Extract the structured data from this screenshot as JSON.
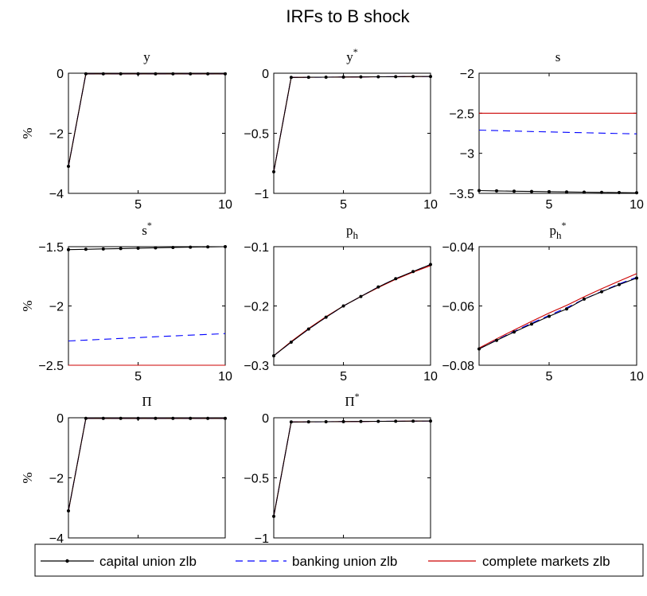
{
  "figure": {
    "title": "IRFs to B shock",
    "ylabel": "%"
  },
  "legend": {
    "items": [
      {
        "label": "capital union zlb",
        "color": "#000000",
        "style": "solid-dots"
      },
      {
        "label": "banking union zlb",
        "color": "#0000ff",
        "style": "dashed"
      },
      {
        "label": "complete markets zlb",
        "color": "#cc0000",
        "style": "solid"
      }
    ]
  },
  "chart_data": [
    {
      "type": "line",
      "title": "y",
      "ylabel": "%",
      "xlim": [
        1,
        10
      ],
      "ylim": [
        -4,
        0
      ],
      "xticks": [
        "5",
        "10"
      ],
      "yticks": [
        "0",
        "−2",
        "−4"
      ],
      "x": [
        1,
        2,
        3,
        4,
        5,
        6,
        7,
        8,
        9,
        10
      ],
      "series": [
        {
          "name": "capital union zlb",
          "values": [
            -3.1,
            -0.02,
            -0.02,
            -0.02,
            -0.02,
            -0.02,
            -0.02,
            -0.02,
            -0.02,
            -0.02
          ]
        },
        {
          "name": "banking union zlb",
          "values": [
            -3.1,
            -0.02,
            -0.02,
            -0.02,
            -0.02,
            -0.02,
            -0.02,
            -0.02,
            -0.02,
            -0.02
          ]
        },
        {
          "name": "complete markets zlb",
          "values": [
            -3.1,
            -0.02,
            -0.02,
            -0.02,
            -0.02,
            -0.02,
            -0.02,
            -0.02,
            -0.02,
            -0.02
          ]
        }
      ]
    },
    {
      "type": "line",
      "title": "y",
      "title_sup": "*",
      "ylabel": "",
      "xlim": [
        1,
        10
      ],
      "ylim": [
        -1,
        0
      ],
      "xticks": [
        "5",
        "10"
      ],
      "yticks": [
        "0",
        "−0.5",
        "−1"
      ],
      "x": [
        1,
        2,
        3,
        4,
        5,
        6,
        7,
        8,
        9,
        10
      ],
      "series": [
        {
          "name": "capital union zlb",
          "values": [
            -0.82,
            -0.035,
            -0.034,
            -0.033,
            -0.032,
            -0.031,
            -0.03,
            -0.029,
            -0.028,
            -0.027
          ]
        },
        {
          "name": "banking union zlb",
          "values": [
            -0.82,
            -0.035,
            -0.034,
            -0.033,
            -0.032,
            -0.031,
            -0.03,
            -0.029,
            -0.028,
            -0.027
          ]
        },
        {
          "name": "complete markets zlb",
          "values": [
            -0.82,
            -0.035,
            -0.034,
            -0.033,
            -0.032,
            -0.031,
            -0.03,
            -0.029,
            -0.028,
            -0.027
          ]
        }
      ]
    },
    {
      "type": "line",
      "title": "s",
      "ylabel": "",
      "xlim": [
        1,
        10
      ],
      "ylim": [
        -3.5,
        -2
      ],
      "xticks": [
        "5",
        "10"
      ],
      "yticks": [
        "−2",
        "−2.5",
        "−3",
        "−3.5"
      ],
      "x": [
        1,
        2,
        3,
        4,
        5,
        6,
        7,
        8,
        9,
        10
      ],
      "series": [
        {
          "name": "capital union zlb",
          "values": [
            -3.465,
            -3.469,
            -3.473,
            -3.476,
            -3.479,
            -3.482,
            -3.485,
            -3.488,
            -3.49,
            -3.493
          ]
        },
        {
          "name": "banking union zlb",
          "values": [
            -2.71,
            -2.716,
            -2.722,
            -2.728,
            -2.733,
            -2.738,
            -2.743,
            -2.748,
            -2.753,
            -2.757
          ]
        },
        {
          "name": "complete markets zlb",
          "values": [
            -2.5,
            -2.5,
            -2.5,
            -2.5,
            -2.5,
            -2.5,
            -2.5,
            -2.5,
            -2.5,
            -2.5
          ]
        }
      ]
    },
    {
      "type": "line",
      "title": "s",
      "title_sup": "*",
      "ylabel": "%",
      "xlim": [
        1,
        10
      ],
      "ylim": [
        -2.5,
        -1.5
      ],
      "xticks": [
        "5",
        "10"
      ],
      "yticks": [
        "−1.5",
        "−2",
        "−2.5"
      ],
      "x": [
        1,
        2,
        3,
        4,
        5,
        6,
        7,
        8,
        9,
        10
      ],
      "series": [
        {
          "name": "capital union zlb",
          "values": [
            -1.525,
            -1.522,
            -1.519,
            -1.516,
            -1.513,
            -1.51,
            -1.507,
            -1.504,
            -1.502,
            -1.5
          ]
        },
        {
          "name": "banking union zlb",
          "values": [
            -2.295,
            -2.288,
            -2.281,
            -2.274,
            -2.267,
            -2.26,
            -2.253,
            -2.246,
            -2.24,
            -2.233
          ]
        },
        {
          "name": "complete markets zlb",
          "values": [
            -2.5,
            -2.5,
            -2.5,
            -2.5,
            -2.5,
            -2.5,
            -2.5,
            -2.5,
            -2.5,
            -2.5
          ]
        }
      ]
    },
    {
      "type": "line",
      "title": "p",
      "title_sub": "h",
      "ylabel": "",
      "xlim": [
        1,
        10
      ],
      "ylim": [
        -0.3,
        -0.1
      ],
      "xticks": [
        "5",
        "10"
      ],
      "yticks": [
        "−0.1",
        "−0.2",
        "−0.3"
      ],
      "x": [
        1,
        2,
        3,
        4,
        5,
        6,
        7,
        8,
        9,
        10
      ],
      "series": [
        {
          "name": "capital union zlb",
          "values": [
            -0.284,
            -0.261,
            -0.239,
            -0.219,
            -0.2,
            -0.184,
            -0.168,
            -0.154,
            -0.142,
            -0.13
          ]
        },
        {
          "name": "banking union zlb",
          "values": [
            -0.284,
            -0.261,
            -0.239,
            -0.219,
            -0.2,
            -0.184,
            -0.168,
            -0.154,
            -0.142,
            -0.13
          ]
        },
        {
          "name": "complete markets zlb",
          "values": [
            -0.284,
            -0.26,
            -0.238,
            -0.218,
            -0.2,
            -0.184,
            -0.169,
            -0.155,
            -0.143,
            -0.132
          ]
        }
      ]
    },
    {
      "type": "line",
      "title": "p",
      "title_sub": "h",
      "title_sup": "*",
      "ylabel": "",
      "xlim": [
        1,
        10
      ],
      "ylim": [
        -0.08,
        -0.04
      ],
      "xticks": [
        "5",
        "10"
      ],
      "yticks": [
        "−0.04",
        "−0.06",
        "−0.08"
      ],
      "x": [
        1,
        2,
        3,
        4,
        5,
        6,
        7,
        8,
        9,
        10
      ],
      "series": [
        {
          "name": "capital union zlb",
          "values": [
            -0.0745,
            -0.0716,
            -0.0688,
            -0.0661,
            -0.0635,
            -0.061,
            -0.0577,
            -0.0552,
            -0.0528,
            -0.0506
          ]
        },
        {
          "name": "banking union zlb",
          "values": [
            -0.0745,
            -0.0715,
            -0.0686,
            -0.0658,
            -0.0632,
            -0.0606,
            -0.0577,
            -0.0551,
            -0.0526,
            -0.0503
          ]
        },
        {
          "name": "complete markets zlb",
          "values": [
            -0.0742,
            -0.0711,
            -0.0681,
            -0.0652,
            -0.0624,
            -0.0598,
            -0.0569,
            -0.0542,
            -0.0516,
            -0.0491
          ]
        }
      ]
    },
    {
      "type": "line",
      "title": "Π",
      "ylabel": "%",
      "xlim": [
        1,
        10
      ],
      "ylim": [
        -4,
        0
      ],
      "xticks": [
        "5",
        "10"
      ],
      "yticks": [
        "0",
        "−2",
        "−4"
      ],
      "x": [
        1,
        2,
        3,
        4,
        5,
        6,
        7,
        8,
        9,
        10
      ],
      "series": [
        {
          "name": "capital union zlb",
          "values": [
            -3.1,
            -0.02,
            -0.02,
            -0.02,
            -0.02,
            -0.02,
            -0.02,
            -0.02,
            -0.02,
            -0.02
          ]
        },
        {
          "name": "banking union zlb",
          "values": [
            -3.1,
            -0.02,
            -0.02,
            -0.02,
            -0.02,
            -0.02,
            -0.02,
            -0.02,
            -0.02,
            -0.02
          ]
        },
        {
          "name": "complete markets zlb",
          "values": [
            -3.1,
            -0.02,
            -0.02,
            -0.02,
            -0.02,
            -0.02,
            -0.02,
            -0.02,
            -0.02,
            -0.02
          ]
        }
      ]
    },
    {
      "type": "line",
      "title": "Π",
      "title_sup": "*",
      "ylabel": "",
      "xlim": [
        1,
        10
      ],
      "ylim": [
        -1,
        0
      ],
      "xticks": [
        "5",
        "10"
      ],
      "yticks": [
        "0",
        "−0.5",
        "−1"
      ],
      "x": [
        1,
        2,
        3,
        4,
        5,
        6,
        7,
        8,
        9,
        10
      ],
      "series": [
        {
          "name": "capital union zlb",
          "values": [
            -0.82,
            -0.035,
            -0.034,
            -0.033,
            -0.032,
            -0.031,
            -0.03,
            -0.029,
            -0.028,
            -0.027
          ]
        },
        {
          "name": "banking union zlb",
          "values": [
            -0.82,
            -0.035,
            -0.034,
            -0.033,
            -0.032,
            -0.031,
            -0.03,
            -0.029,
            -0.028,
            -0.027
          ]
        },
        {
          "name": "complete markets zlb",
          "values": [
            -0.82,
            -0.035,
            -0.034,
            -0.033,
            -0.032,
            -0.031,
            -0.03,
            -0.029,
            -0.028,
            -0.027
          ]
        }
      ]
    }
  ]
}
